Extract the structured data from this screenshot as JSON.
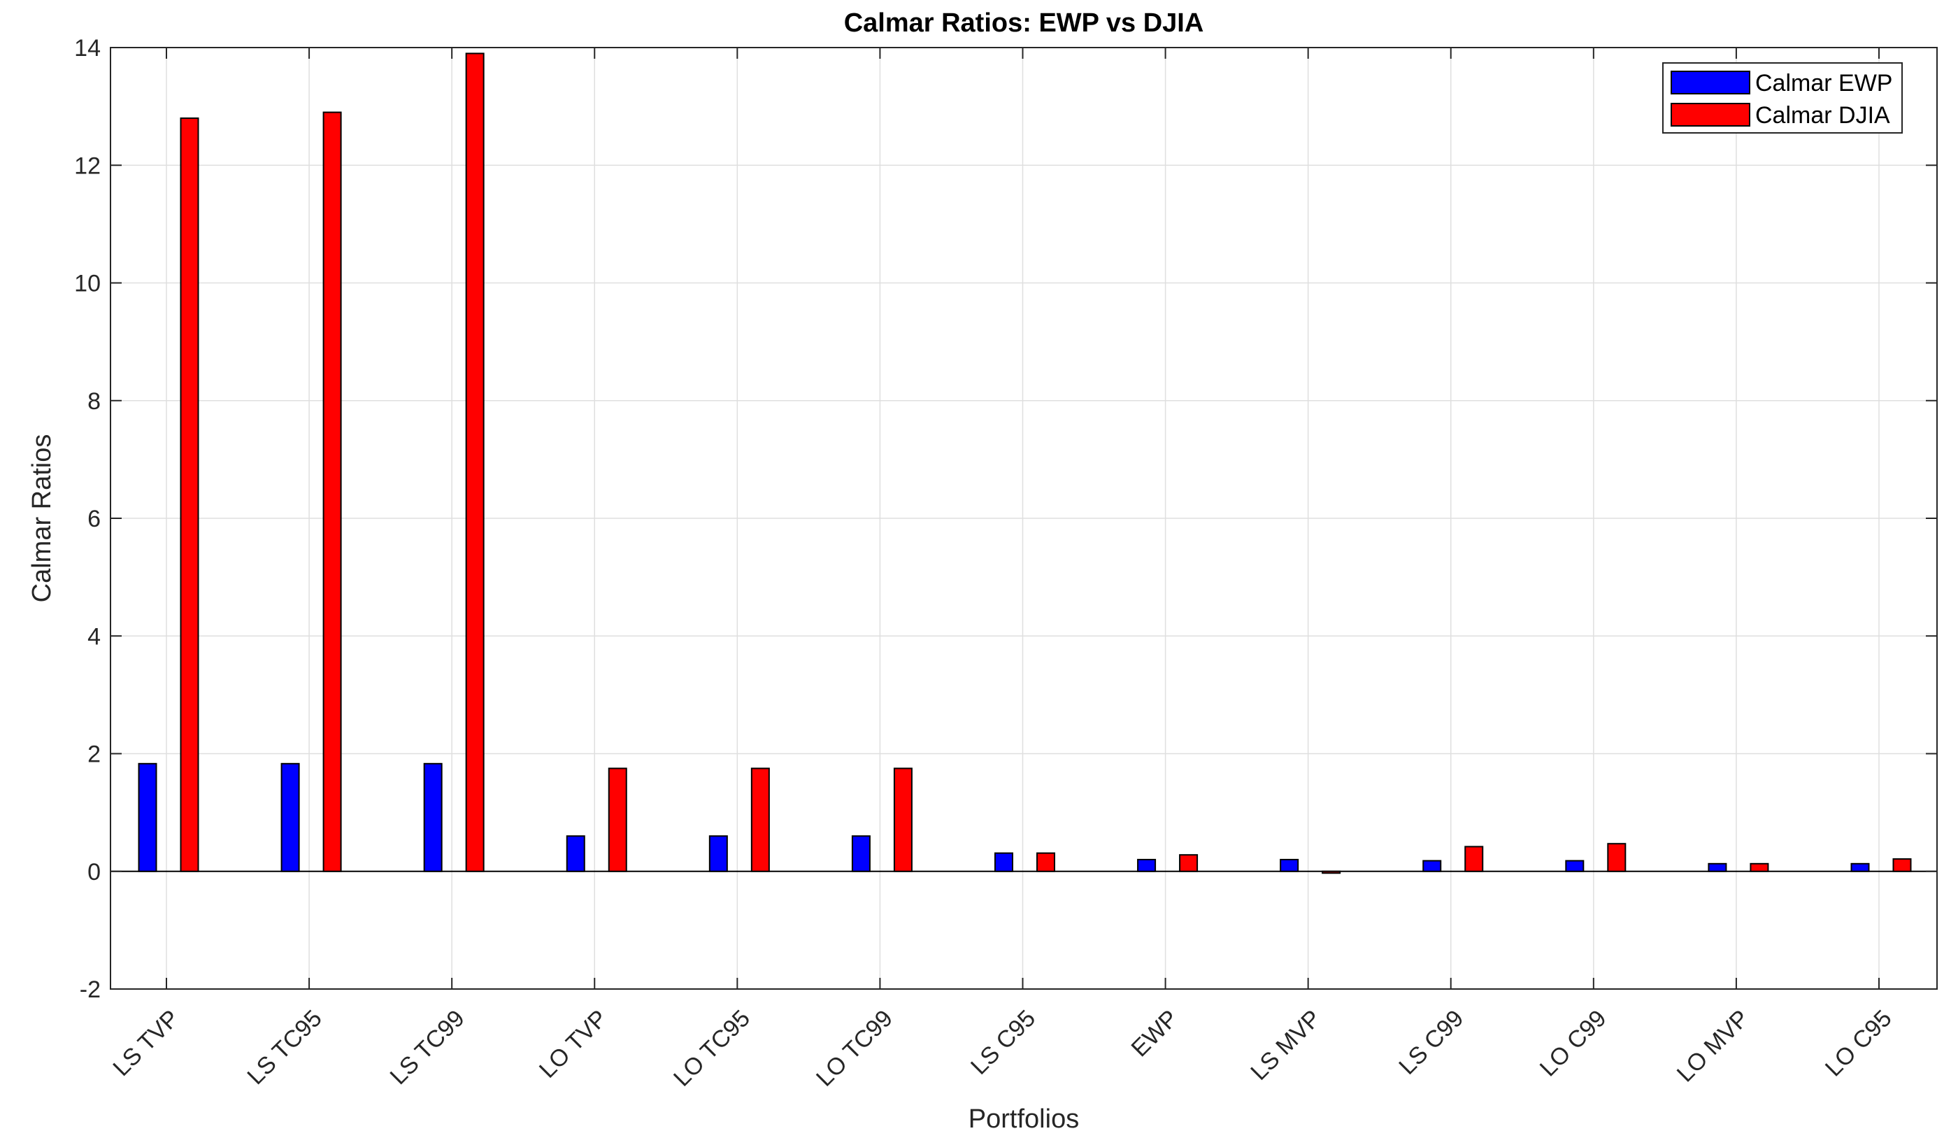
{
  "chart_data": {
    "type": "bar",
    "title": "Calmar Ratios: EWP vs DJIA",
    "xlabel": "Portfolios",
    "ylabel": "Calmar Ratios",
    "ylim": [
      -2,
      14
    ],
    "yticks": [
      -2,
      0,
      2,
      4,
      6,
      8,
      10,
      12,
      14
    ],
    "grid": true,
    "legend_position": "top-right",
    "categories": [
      "LS TVP",
      "LS TC95",
      "LS TC99",
      "LO TVP",
      "LO TC95",
      "LO TC99",
      "LS C95",
      "EWP",
      "LS MVP",
      "LS C99",
      "LO C99",
      "LO MVP",
      "LO C95"
    ],
    "series": [
      {
        "name": "Calmar EWP",
        "color": "#0000ff",
        "values": [
          1.83,
          1.83,
          1.83,
          0.6,
          0.6,
          0.6,
          0.31,
          0.2,
          0.2,
          0.18,
          0.18,
          0.13,
          0.13
        ]
      },
      {
        "name": "Calmar DJIA",
        "color": "#ff0000",
        "values": [
          12.8,
          12.9,
          13.9,
          1.75,
          1.75,
          1.75,
          0.31,
          0.28,
          -0.03,
          0.42,
          0.47,
          0.13,
          0.21
        ]
      }
    ]
  }
}
